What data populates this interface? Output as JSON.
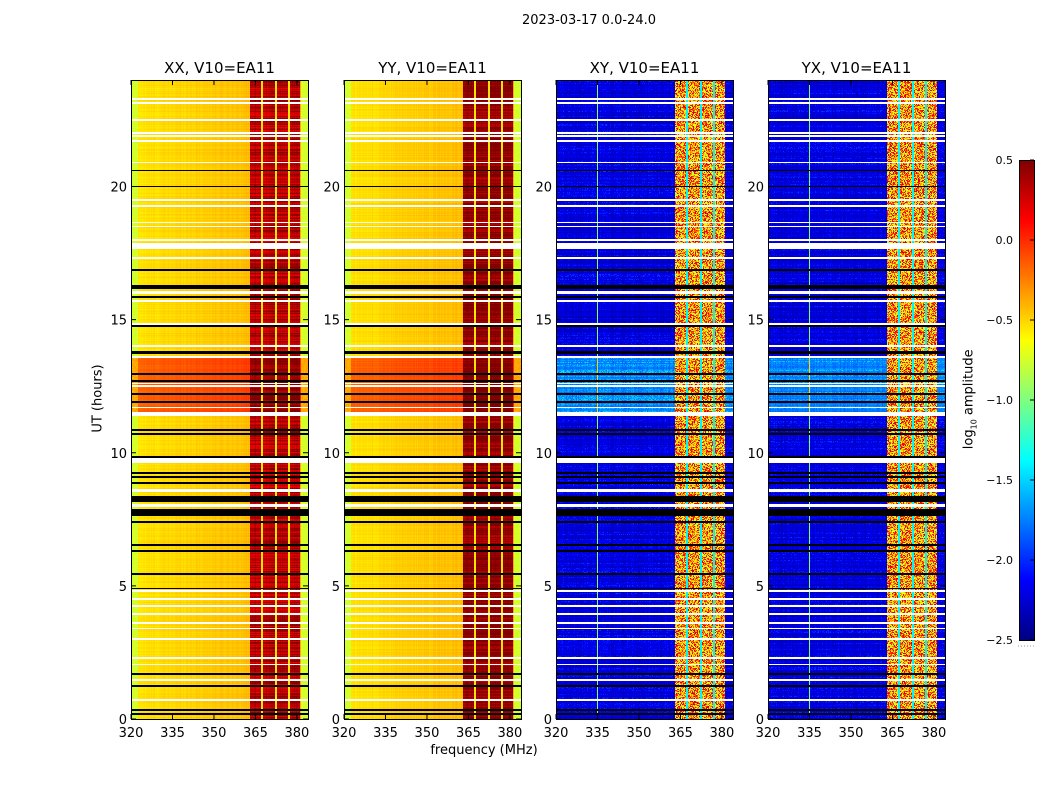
{
  "chart_data": {
    "type": "heatmap",
    "title": "2023-03-17 0.0-24.0",
    "xlabel": "frequency (MHz)",
    "ylabel": "UT (hours)",
    "xlim": [
      320,
      384
    ],
    "ylim": [
      0,
      24
    ],
    "xticks": [
      320,
      335,
      350,
      365,
      380
    ],
    "xtick_labels": [
      "320",
      "335",
      "350",
      "365",
      "380"
    ],
    "yticks": [
      0,
      5,
      10,
      15,
      20
    ],
    "ytick_labels": [
      "0",
      "5",
      "10",
      "15",
      "20"
    ],
    "panels": [
      {
        "title": "XX, V10=EA11",
        "kind": "parallel",
        "band_offset": 0.0
      },
      {
        "title": "YY, V10=EA11",
        "kind": "parallel",
        "band_offset": 0.12
      },
      {
        "title": "XY, V10=EA11",
        "kind": "cross",
        "band_offset": 0.0
      },
      {
        "title": "YX, V10=EA11",
        "kind": "cross",
        "band_offset": 0.0
      }
    ],
    "strong_band_mhz": [
      363,
      381
    ],
    "band_channel_gaps_mhz": [
      367.5,
      372.5,
      377
    ],
    "cross_vertical_line_mhz": 335,
    "bright_period_hours": [
      11.4,
      13.6
    ],
    "flagged_black_hours": [
      0.2,
      0.35,
      1.25,
      1.7,
      4.9,
      5.45,
      6.3,
      6.55,
      7.4,
      7.65,
      7.7,
      7.75,
      7.8,
      7.85,
      8.2,
      8.25,
      8.35,
      8.85,
      9.1,
      9.25,
      9.85,
      10.7,
      10.85,
      11.9,
      12.2,
      12.7,
      12.95,
      13.75,
      13.8,
      14.75,
      15.85,
      16.2,
      16.25,
      16.85,
      20.0,
      20.6
    ],
    "flagged_white_hours": [
      0.7,
      1.45,
      2.05,
      2.3,
      3.0,
      3.4,
      3.6,
      3.95,
      4.25,
      4.5,
      4.8,
      7.98,
      8.05,
      8.55,
      8.6,
      9.65,
      9.7,
      9.75,
      9.8,
      11.4,
      11.45,
      11.5,
      11.7,
      12.5,
      12.6,
      13.6,
      14.0,
      14.85,
      15.7,
      16.0,
      16.05,
      17.3,
      17.7,
      17.75,
      17.8,
      17.85,
      18.0,
      18.5,
      18.65,
      19.27,
      19.5,
      20.9,
      21.7,
      21.9,
      22.0,
      22.5,
      23.15,
      23.3
    ],
    "colorbar": {
      "label_prefix": "log",
      "label_sub": "10",
      "label_suffix": " amplitude",
      "colormap": "jet",
      "range": [
        -2.5,
        0.5
      ],
      "ticks": [
        0.5,
        0.0,
        -0.5,
        -1.0,
        -1.5,
        -2.0,
        -2.5
      ],
      "tick_labels": [
        "0.5",
        "0.0",
        "−0.5",
        "−1.0",
        "−1.5",
        "−2.0",
        "−2.5"
      ]
    },
    "colors": {
      "flag_black": "#000000",
      "flag_white": "#ffffff",
      "axis": "#000000"
    }
  }
}
